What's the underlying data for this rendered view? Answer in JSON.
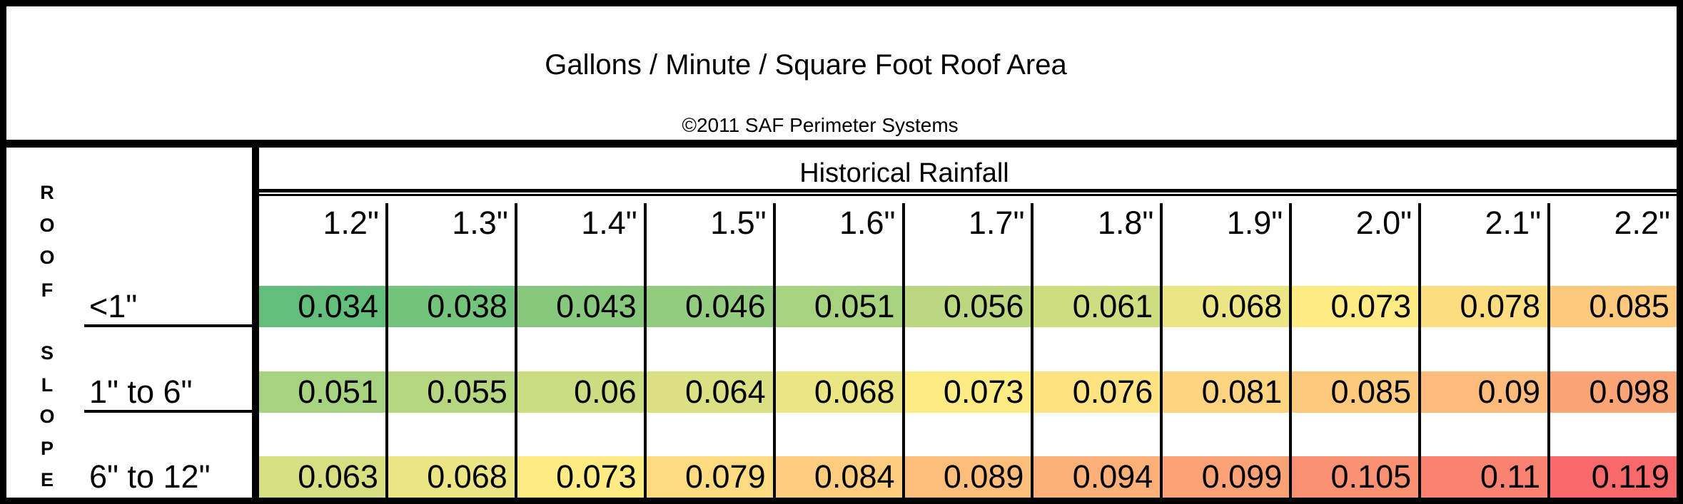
{
  "chart_data": {
    "type": "heatmap",
    "title": "Gallons / Minute / Square Foot Roof Area",
    "subtitle": "©2011 SAF Perimeter Systems",
    "x_axis_label": "Historical Rainfall",
    "y_axis_label": "ROOF SLOPE",
    "columns": [
      "1.2\"",
      "1.3\"",
      "1.4\"",
      "1.5\"",
      "1.6\"",
      "1.7\"",
      "1.8\"",
      "1.9\"",
      "2.0\"",
      "2.1\"",
      "2.2\""
    ],
    "rows": [
      {
        "label": "<1\"",
        "values": [
          0.034,
          0.038,
          0.043,
          0.046,
          0.051,
          0.056,
          0.061,
          0.068,
          0.073,
          0.078,
          0.085
        ]
      },
      {
        "label": "1\" to 6\"",
        "values": [
          0.051,
          0.055,
          0.06,
          0.064,
          0.068,
          0.073,
          0.076,
          0.081,
          0.085,
          0.09,
          0.098
        ]
      },
      {
        "label": "6\" to 12\"",
        "values": [
          0.063,
          0.068,
          0.073,
          0.079,
          0.084,
          0.089,
          0.094,
          0.099,
          0.105,
          0.11,
          0.119
        ]
      }
    ],
    "color_scale": {
      "type": "3-color",
      "min_color": "#63BE7B",
      "mid_color": "#FFEB84",
      "max_color": "#F8696B",
      "min_value": 0.034,
      "mid_value": 0.073,
      "max_value": 0.119
    },
    "layout": {
      "legend": false,
      "grid_lines": "vertical",
      "border_color": "#000000",
      "background": "#FFFFFF"
    }
  }
}
